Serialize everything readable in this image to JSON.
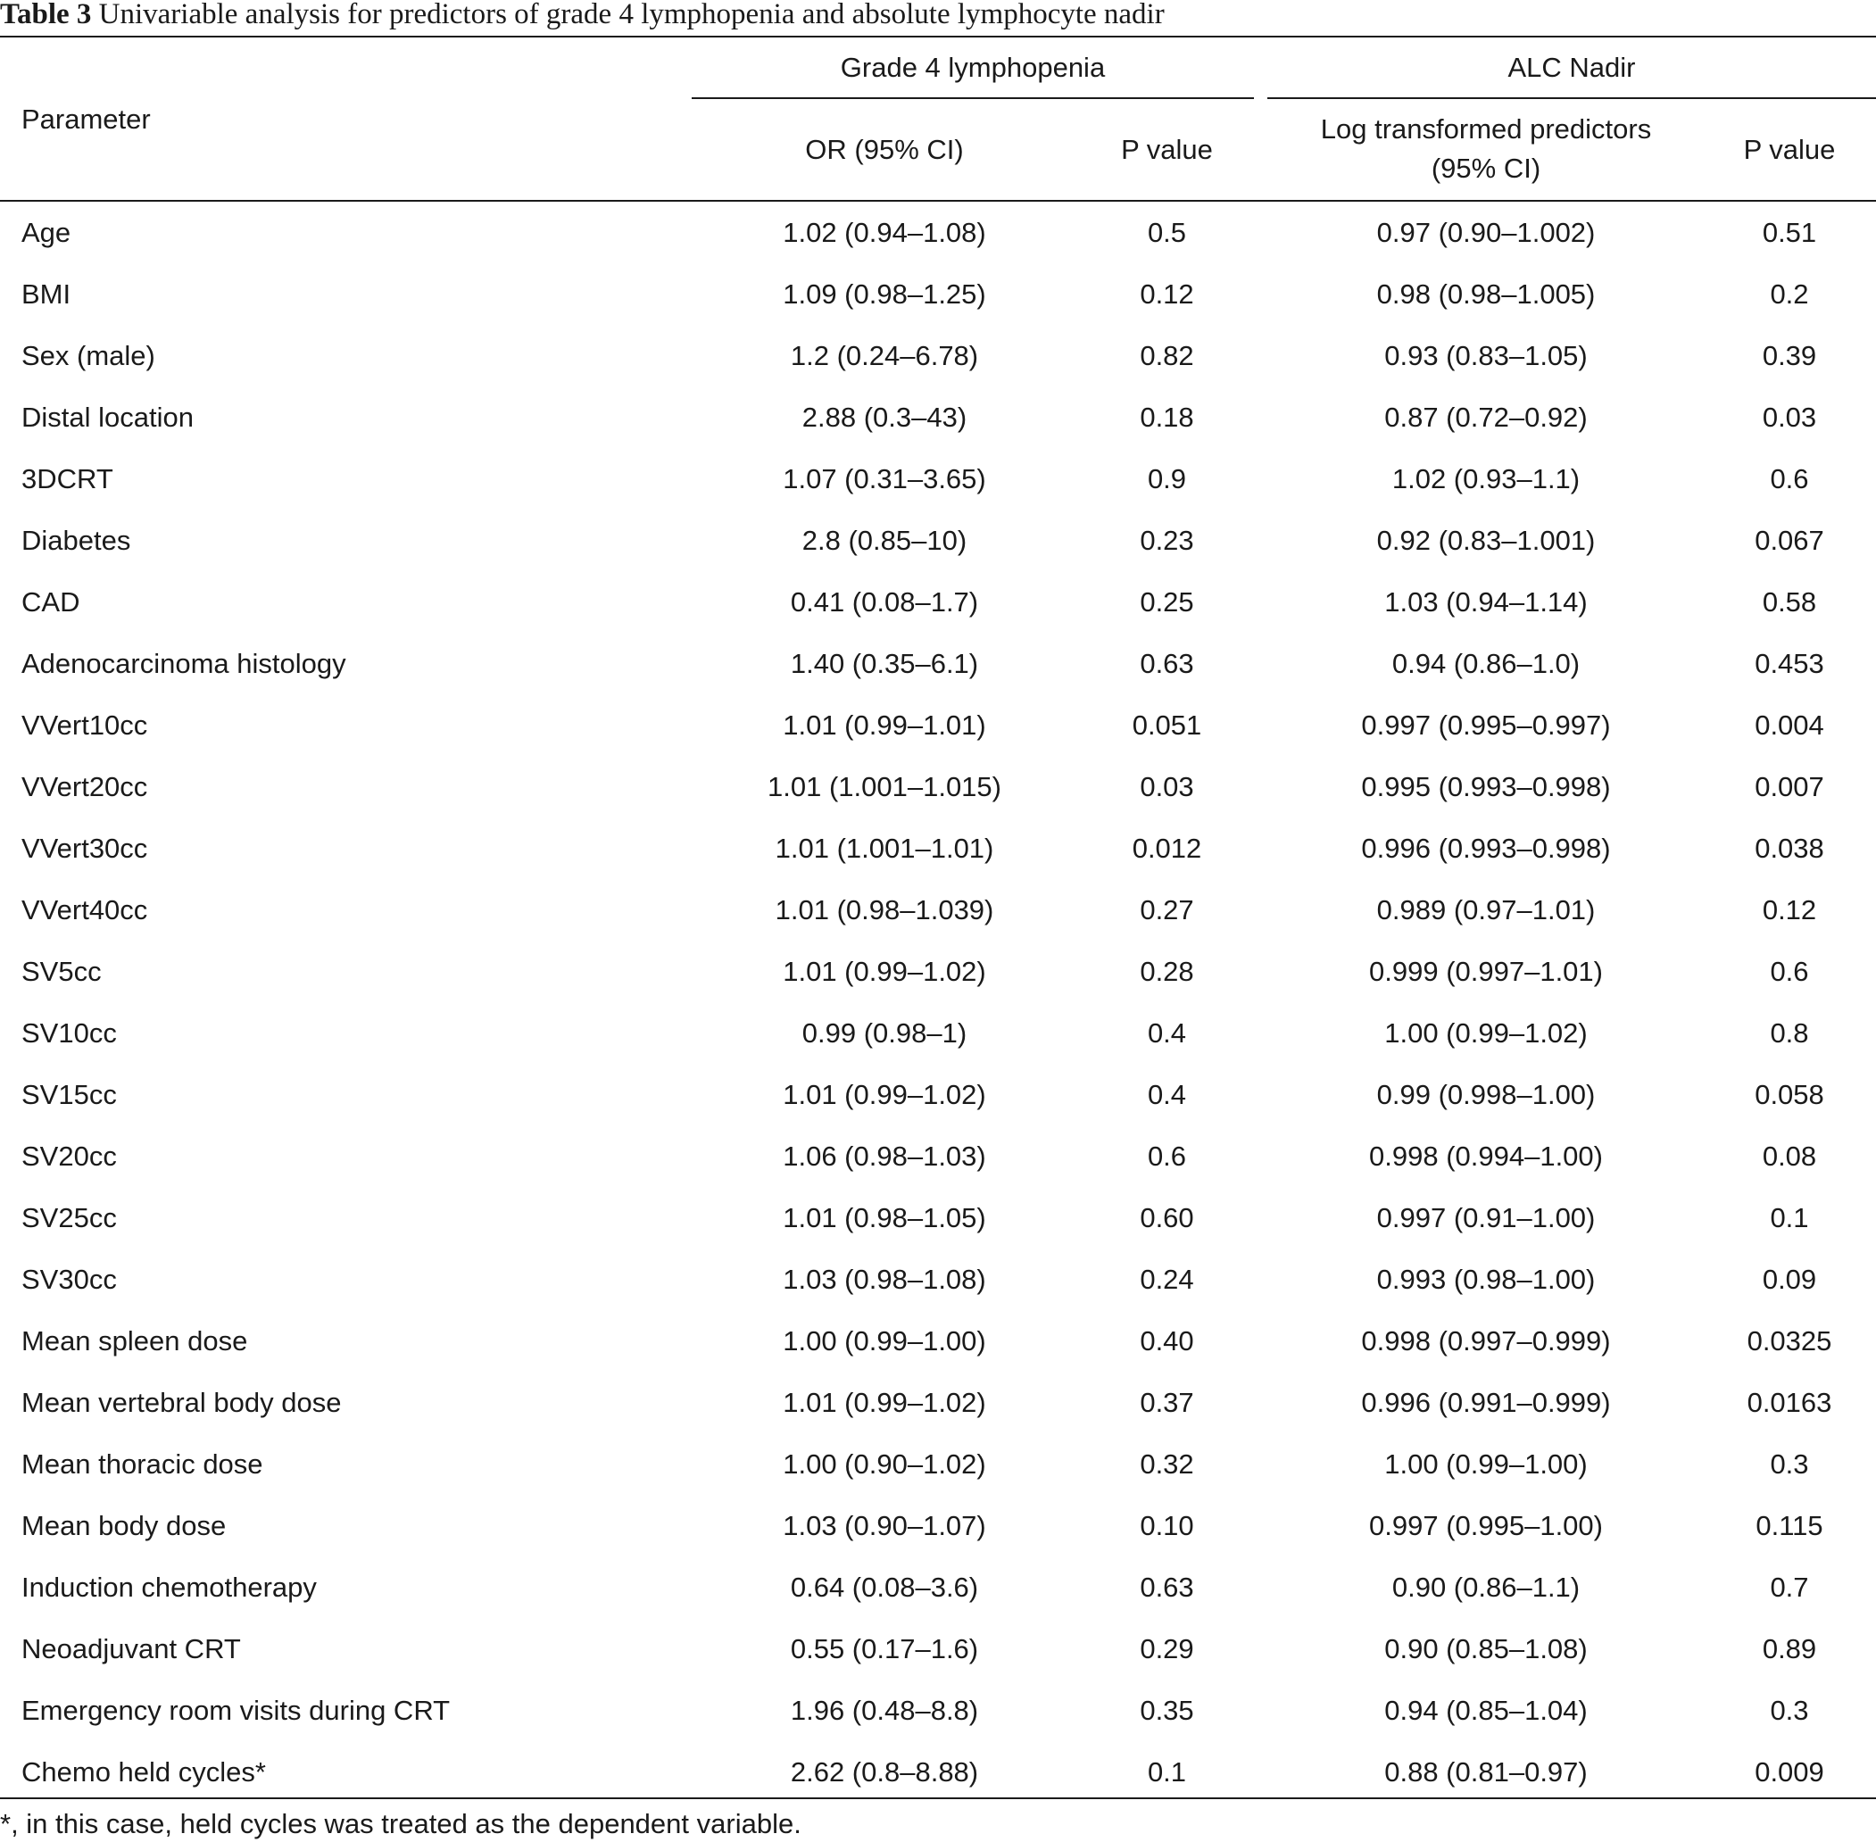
{
  "caption": {
    "label": "Table 3",
    "text": "Univariable analysis for predictors of grade 4 lymphopenia and absolute lymphocyte nadir"
  },
  "header": {
    "parameter": "Parameter",
    "group1": "Grade 4 lymphopenia",
    "group2": "ALC Nadir",
    "g1_col1": "OR (95% CI)",
    "g1_col2": "P value",
    "g2_col1_line1": "Log transformed predictors",
    "g2_col1_line2": "(95% CI)",
    "g2_col2": "P value"
  },
  "rows": [
    [
      "Age",
      "1.02 (0.94–1.08)",
      "0.5",
      "0.97 (0.90–1.002)",
      "0.51"
    ],
    [
      "BMI",
      "1.09 (0.98–1.25)",
      "0.12",
      "0.98 (0.98–1.005)",
      "0.2"
    ],
    [
      "Sex (male)",
      "1.2 (0.24–6.78)",
      "0.82",
      "0.93 (0.83–1.05)",
      "0.39"
    ],
    [
      "Distal location",
      "2.88 (0.3–43)",
      "0.18",
      "0.87 (0.72–0.92)",
      "0.03"
    ],
    [
      "3DCRT",
      "1.07 (0.31–3.65)",
      "0.9",
      "1.02 (0.93–1.1)",
      "0.6"
    ],
    [
      "Diabetes",
      "2.8 (0.85–10)",
      "0.23",
      "0.92 (0.83–1.001)",
      "0.067"
    ],
    [
      "CAD",
      "0.41 (0.08–1.7)",
      "0.25",
      "1.03 (0.94–1.14)",
      "0.58"
    ],
    [
      "Adenocarcinoma histology",
      "1.40 (0.35–6.1)",
      "0.63",
      "0.94 (0.86–1.0)",
      "0.453"
    ],
    [
      "VVert10cc",
      "1.01 (0.99–1.01)",
      "0.051",
      "0.997 (0.995–0.997)",
      "0.004"
    ],
    [
      "VVert20cc",
      "1.01 (1.001–1.015)",
      "0.03",
      "0.995 (0.993–0.998)",
      "0.007"
    ],
    [
      "VVert30cc",
      "1.01 (1.001–1.01)",
      "0.012",
      "0.996 (0.993–0.998)",
      "0.038"
    ],
    [
      "VVert40cc",
      "1.01 (0.98–1.039)",
      "0.27",
      "0.989 (0.97–1.01)",
      "0.12"
    ],
    [
      "SV5cc",
      "1.01 (0.99–1.02)",
      "0.28",
      "0.999 (0.997–1.01)",
      "0.6"
    ],
    [
      "SV10cc",
      "0.99 (0.98–1)",
      "0.4",
      "1.00 (0.99–1.02)",
      "0.8"
    ],
    [
      "SV15cc",
      "1.01 (0.99–1.02)",
      "0.4",
      "0.99 (0.998–1.00)",
      "0.058"
    ],
    [
      "SV20cc",
      "1.06 (0.98–1.03)",
      "0.6",
      "0.998 (0.994–1.00)",
      "0.08"
    ],
    [
      "SV25cc",
      "1.01 (0.98–1.05)",
      "0.60",
      "0.997 (0.91–1.00)",
      "0.1"
    ],
    [
      "SV30cc",
      "1.03 (0.98–1.08)",
      "0.24",
      "0.993 (0.98–1.00)",
      "0.09"
    ],
    [
      "Mean spleen dose",
      "1.00 (0.99–1.00)",
      "0.40",
      "0.998 (0.997–0.999)",
      "0.0325"
    ],
    [
      "Mean vertebral body dose",
      "1.01 (0.99–1.02)",
      "0.37",
      "0.996 (0.991–0.999)",
      "0.0163"
    ],
    [
      "Mean thoracic dose",
      "1.00 (0.90–1.02)",
      "0.32",
      "1.00 (0.99–1.00)",
      "0.3"
    ],
    [
      "Mean body dose",
      "1.03 (0.90–1.07)",
      "0.10",
      "0.997 (0.995–1.00)",
      "0.115"
    ],
    [
      "Induction chemotherapy",
      "0.64 (0.08–3.6)",
      "0.63",
      "0.90 (0.86–1.1)",
      "0.7"
    ],
    [
      "Neoadjuvant CRT",
      "0.55 (0.17–1.6)",
      "0.29",
      "0.90 (0.85–1.08)",
      "0.89"
    ],
    [
      "Emergency room visits during CRT",
      "1.96 (0.48–8.8)",
      "0.35",
      "0.94 (0.85–1.04)",
      "0.3"
    ],
    [
      "Chemo held cycles*",
      "2.62 (0.8–8.88)",
      "0.1",
      "0.88 (0.81–0.97)",
      "0.009"
    ]
  ],
  "footnote": "*, in this case, held cycles was treated as the dependent variable."
}
